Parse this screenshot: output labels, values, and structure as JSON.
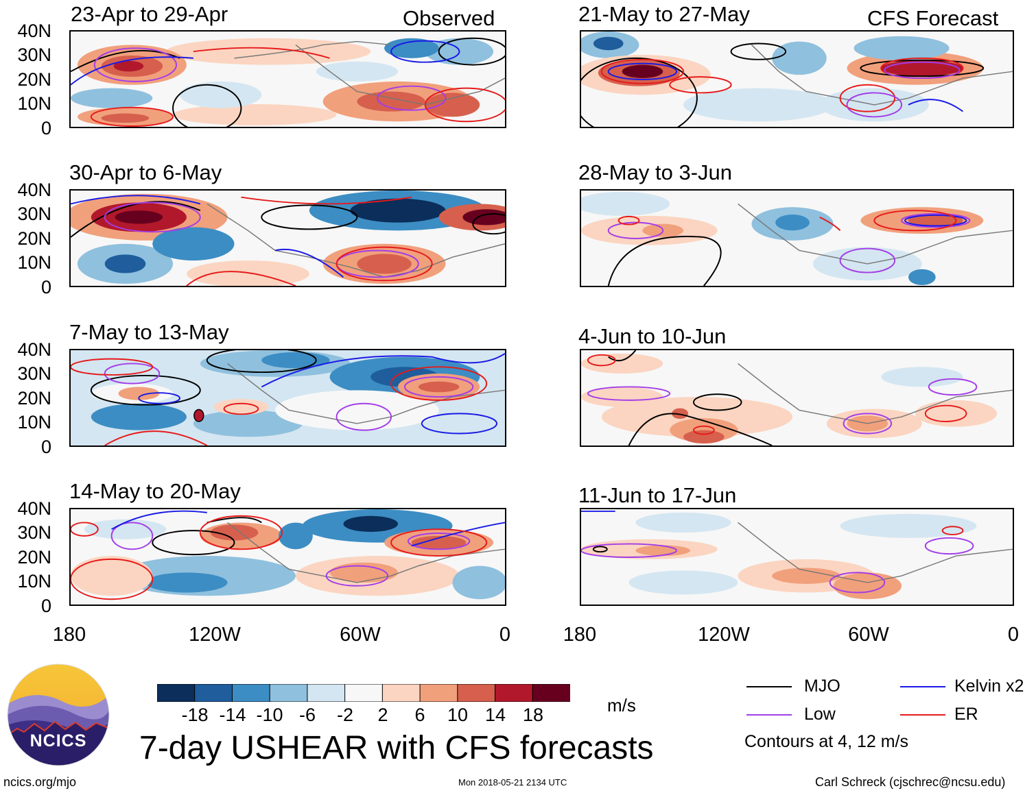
{
  "header": {
    "observed_label": "Observed",
    "forecast_label": "CFS Forecast"
  },
  "panels_observed": [
    {
      "title": "23-Apr to 29-Apr"
    },
    {
      "title": "30-Apr to 6-May"
    },
    {
      "title": "7-May to 13-May"
    },
    {
      "title": "14-May to 20-May"
    }
  ],
  "panels_forecast": [
    {
      "title": "21-May to 27-May"
    },
    {
      "title": "28-May to 3-Jun"
    },
    {
      "title": "4-Jun to 10-Jun"
    },
    {
      "title": "11-Jun to 17-Jun"
    }
  ],
  "lat_labels": [
    "40N",
    "30N",
    "20N",
    "10N",
    "0"
  ],
  "lon_labels": [
    "180",
    "120W",
    "60W",
    "0"
  ],
  "colorbar": {
    "ticks": [
      "-18",
      "-14",
      "-10",
      "-6",
      "-2",
      "2",
      "6",
      "10",
      "14",
      "18"
    ],
    "colors": [
      "#0b2e5a",
      "#1f5d9c",
      "#3c8dc3",
      "#8fc0de",
      "#d4e6f1",
      "#f7f7f7",
      "#fbd5c1",
      "#f1a07c",
      "#d6604d",
      "#b2182b",
      "#67001f"
    ],
    "units": "m/s"
  },
  "legend": {
    "items": [
      {
        "label": "MJO",
        "color": "#000000"
      },
      {
        "label": "Kelvin x2",
        "color": "#1a1ae6"
      },
      {
        "label": "Low",
        "color": "#a33de8"
      },
      {
        "label": "ER",
        "color": "#e61a1a"
      }
    ],
    "contours_note": "Contours at 4, 12 m/s"
  },
  "footer": {
    "main_title": "7-day USHEAR with CFS forecasts",
    "logo_text": "NCICS",
    "url": "ncics.org/mjo",
    "timestamp": "Mon 2018-05-21 2134 UTC",
    "credit": "Carl Schreck (cjschrec@ncsu.edu)"
  }
}
